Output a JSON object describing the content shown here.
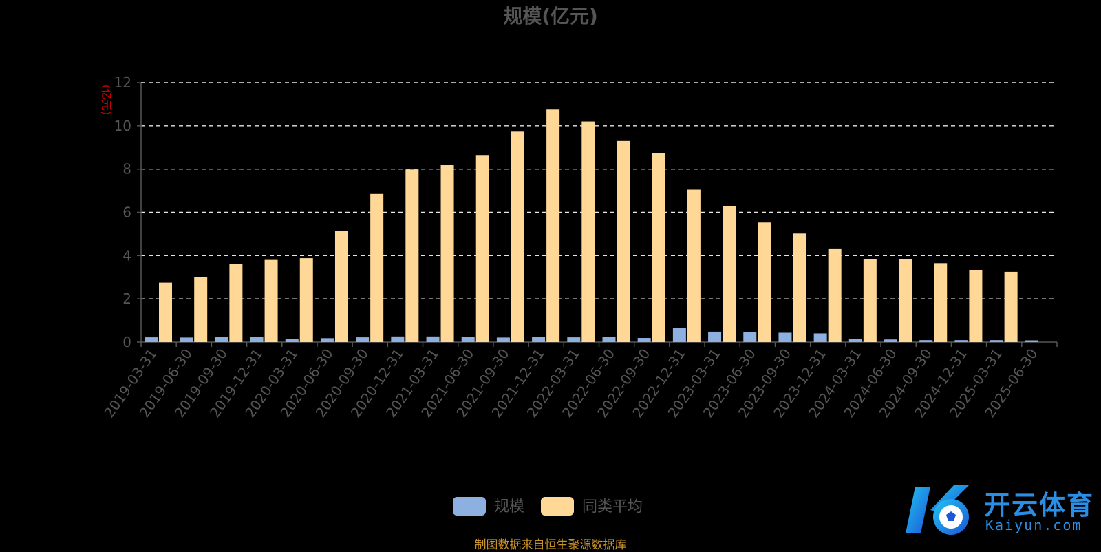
{
  "chart_data": {
    "type": "bar",
    "title": "规模(亿元)",
    "ylabel": "(亿元)",
    "xlabel": "",
    "ylim": [
      0,
      12
    ],
    "yticks": [
      0,
      2,
      4,
      6,
      8,
      10,
      12
    ],
    "grid": true,
    "legend_position": "bottom",
    "categories": [
      "2019-03-31",
      "2019-06-30",
      "2019-09-30",
      "2019-12-31",
      "2020-03-31",
      "2020-06-30",
      "2020-09-30",
      "2020-12-31",
      "2021-03-31",
      "2021-06-30",
      "2021-09-30",
      "2021-12-31",
      "2022-03-31",
      "2022-06-30",
      "2022-09-30",
      "2022-12-31",
      "2023-03-31",
      "2023-06-30",
      "2023-09-30",
      "2023-12-31",
      "2024-03-31",
      "2024-06-30",
      "2024-09-30",
      "2024-12-31",
      "2025-03-31",
      "2025-06-30"
    ],
    "series": [
      {
        "name": "规模",
        "color": "#8eb0e0",
        "values": [
          0.22,
          0.21,
          0.24,
          0.25,
          0.15,
          0.18,
          0.22,
          0.26,
          0.26,
          0.24,
          0.21,
          0.25,
          0.22,
          0.23,
          0.19,
          0.65,
          0.48,
          0.45,
          0.43,
          0.4,
          0.13,
          0.12,
          0.09,
          0.09,
          0.09,
          0.08
        ]
      },
      {
        "name": "同类平均",
        "color": "#ffd898",
        "values": [
          2.75,
          3.0,
          3.62,
          3.8,
          3.88,
          5.13,
          6.85,
          7.98,
          8.18,
          8.65,
          9.73,
          10.75,
          10.2,
          9.3,
          8.75,
          7.05,
          6.28,
          5.53,
          5.02,
          4.3,
          3.85,
          3.83,
          3.65,
          3.32,
          3.25,
          null
        ]
      }
    ]
  },
  "footer": {
    "source_note": "制图数据来自恒生聚源数据库"
  },
  "watermark": {
    "brand_cn": "开云体育",
    "brand_en": "Kaiyun.com"
  },
  "colors": {
    "title": "#555555",
    "axis_text": "#555555",
    "ylabel": "#cc0000",
    "grid": "#ffffff",
    "source_note": "#c8922a",
    "watermark": "#2a8ee6"
  }
}
